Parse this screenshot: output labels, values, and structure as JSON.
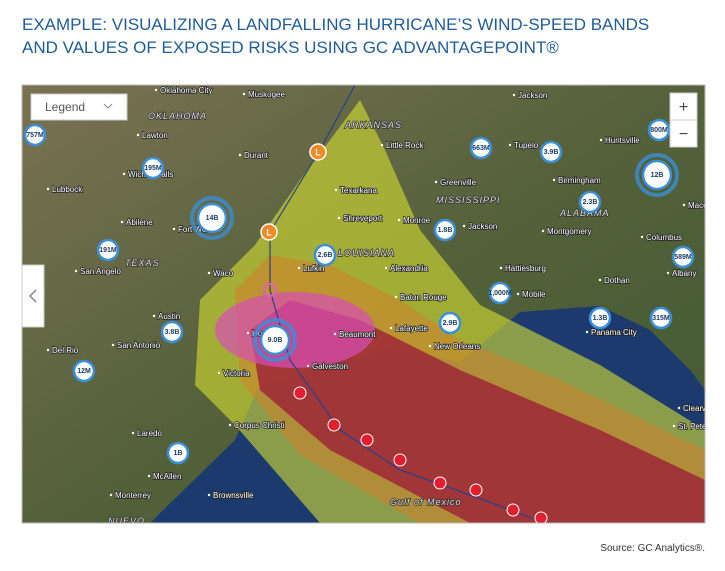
{
  "title": {
    "lines": [
      "EXAMPLE: VISUALIZING A LANDFALLING HURRICANE’S WIND-SPEED BANDS",
      "AND VALUES OF EXPOSED RISKS USING GC ADVANTAGEPOINT®"
    ]
  },
  "map": {
    "legend": "Legend",
    "zoom_in": "+",
    "zoom_out": "−",
    "storm_markers": [
      "L",
      "L"
    ],
    "exposures": [
      "757M",
      "195M",
      "14B",
      "191M",
      "2.6B",
      "663M",
      "3.9B",
      "12B",
      "800M",
      "2.3B",
      "1.8B",
      "589M",
      "1,000M",
      "3.8B",
      "9.0B",
      "2.9B",
      "1.3B",
      "315M",
      "12M",
      "1B"
    ],
    "cities": [
      "Oklahoma City",
      "Muskogee",
      "Jackson",
      "Lawton",
      "Durant",
      "Little Rock",
      "Tupelo",
      "Huntsville",
      "Wichita Falls",
      "Lubbock",
      "Greenville",
      "Birmingham",
      "Texarkana",
      "Abilene",
      "Fort Worth",
      "Shreveport",
      "Monroe",
      "Jackson",
      "Montgomery",
      "Macon",
      "Columbus",
      "San Angelo",
      "Waco",
      "Lufkin",
      "Alexandria",
      "Hattiesburg",
      "Dothan",
      "Albany",
      "Baton Rouge",
      "Mobile",
      "Austin",
      "Lafayette",
      "Houston",
      "Beaumont",
      "Panama City",
      "San Antonio",
      "Del Rio",
      "New Orleans",
      "Victoria",
      "Galveston",
      "Clearwater",
      "St. Petersburg",
      "Corpus Christi",
      "Laredo",
      "McAllen",
      "Brownsville",
      "Monterrey"
    ],
    "states": [
      "OKLAHOMA",
      "ARKANSAS",
      "MISSISSIPPI",
      "ALABAMA",
      "TEXAS",
      "LOUISIANA",
      "NUEVO"
    ],
    "water": "Gulf of Mexico"
  },
  "source": "Source: GC Analytics®."
}
